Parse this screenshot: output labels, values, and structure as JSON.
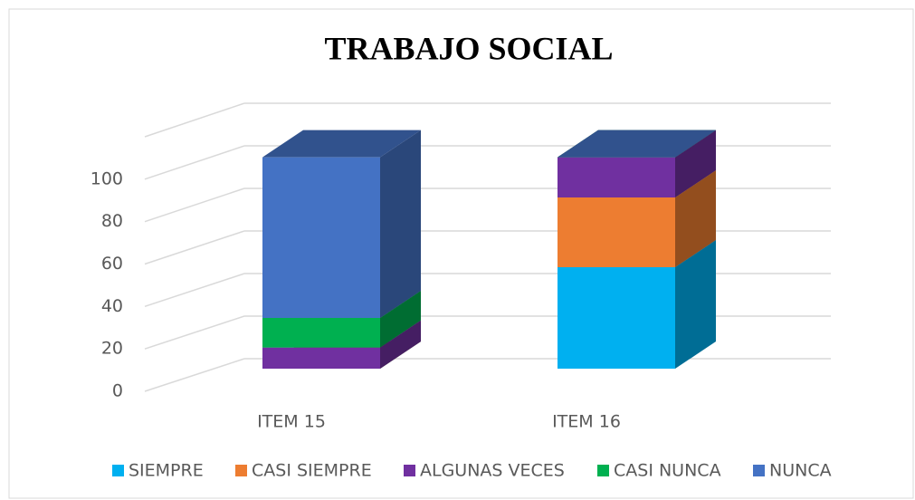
{
  "chart_data": {
    "type": "bar3d_stacked",
    "title": "TRABAJO SOCIAL",
    "categories": [
      "ITEM 15",
      "ITEM 16"
    ],
    "series": [
      {
        "name": "SIEMPRE",
        "color": "#00b0f0",
        "values": [
          0,
          48
        ]
      },
      {
        "name": "CASI SIEMPRE",
        "color": "#ed7d31",
        "values": [
          0,
          33
        ]
      },
      {
        "name": "ALGUNAS VECES",
        "color": "#7030a0",
        "values": [
          10,
          19
        ]
      },
      {
        "name": "CASI NUNCA",
        "color": "#00b050",
        "values": [
          14,
          0
        ]
      },
      {
        "name": "NUNCA",
        "color": "#4472c4",
        "values": [
          76,
          0
        ]
      }
    ],
    "ylim": [
      0,
      120
    ],
    "yticks": [
      0,
      20,
      40,
      60,
      80,
      100
    ],
    "grid": true,
    "legend": "bottom"
  }
}
